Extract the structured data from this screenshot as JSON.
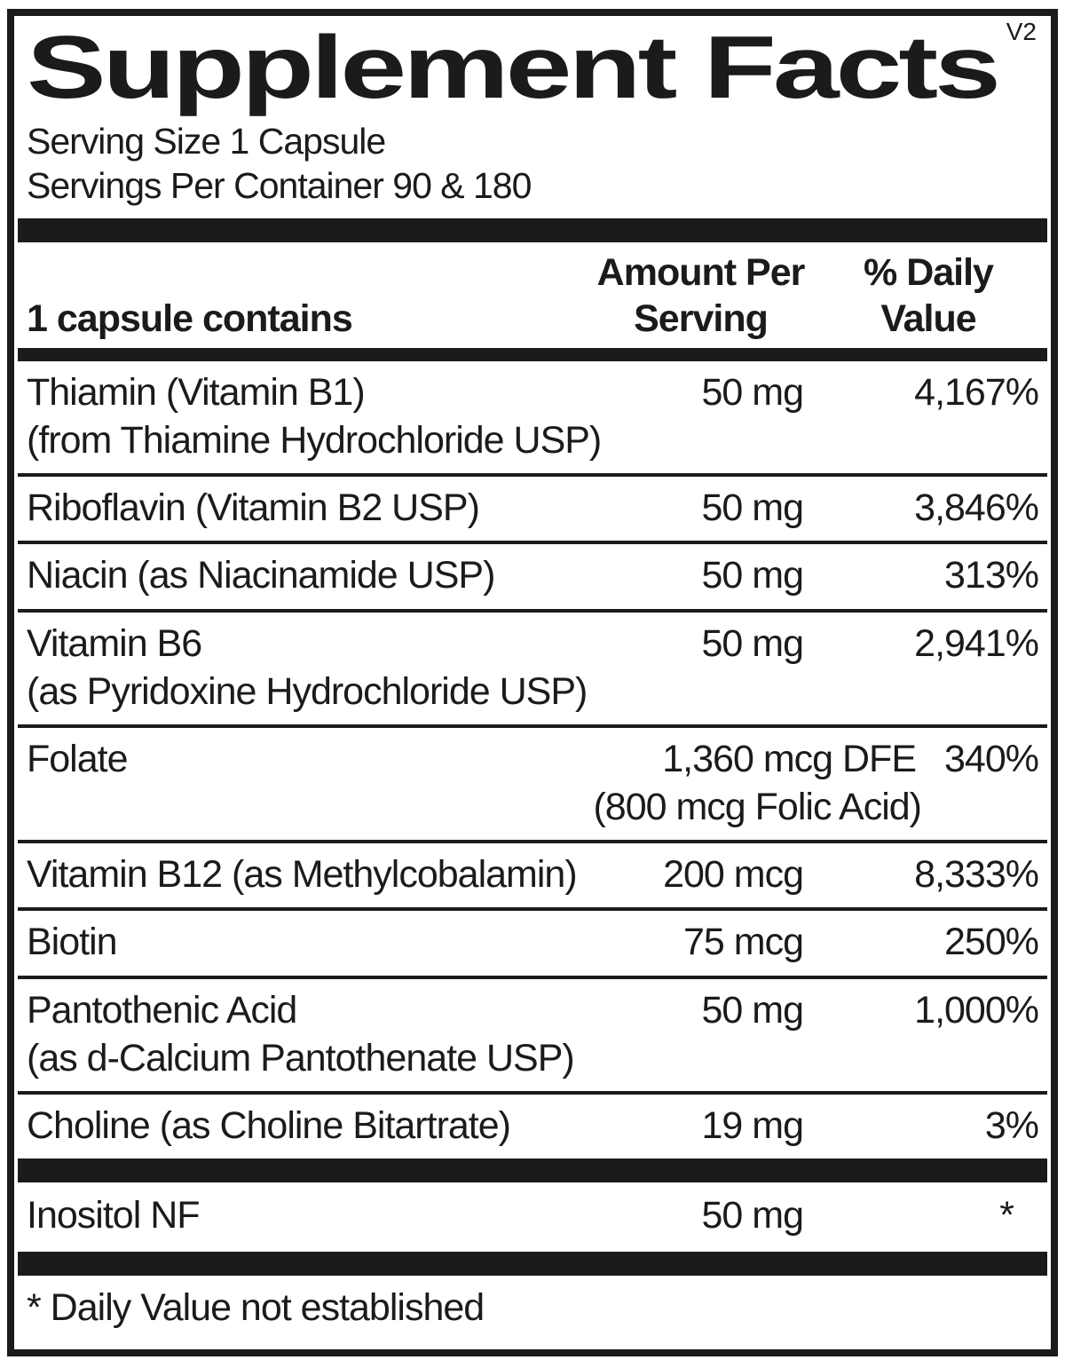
{
  "label": {
    "title": "Supplement Facts",
    "version": "V2",
    "serving_size": "Serving Size 1 Capsule",
    "servings_per_container": "Servings Per Container 90 & 180",
    "columns": {
      "contains": "1 capsule contains",
      "amount_per_serving": "Amount Per Serving",
      "percent_daily_value": "% Daily Value"
    },
    "rows": [
      {
        "name": "Thiamin (Vitamin B1)",
        "sub": "(from Thiamine Hydrochloride USP)",
        "amount": "50 mg",
        "dv": "4,167%"
      },
      {
        "name": "Riboflavin (Vitamin B2 USP)",
        "amount": "50 mg",
        "dv": "3,846%"
      },
      {
        "name": "Niacin (as Niacinamide USP)",
        "amount": "50 mg",
        "dv": "313%"
      },
      {
        "name": "Vitamin B6",
        "sub": "(as Pyridoxine Hydrochloride USP)",
        "amount": "50 mg",
        "dv": "2,941%"
      },
      {
        "name": "Folate",
        "amount": "1,360 mcg DFE",
        "amount_sub": "(800 mcg Folic Acid)",
        "dv": "340%"
      },
      {
        "name": "Vitamin B12 (as Methylcobalamin)",
        "amount": "200 mcg",
        "dv": "8,333%"
      },
      {
        "name": "Biotin",
        "amount": "75 mcg",
        "dv": "250%"
      },
      {
        "name": "Pantothenic Acid",
        "sub": "(as d-Calcium Pantothenate USP)",
        "amount": "50 mg",
        "dv": "1,000%"
      },
      {
        "name": "Choline (as Choline Bitartrate)",
        "amount": "19 mg",
        "dv": "3%"
      }
    ],
    "other_rows": [
      {
        "name": "Inositol NF",
        "amount": "50 mg",
        "dv": "*"
      }
    ],
    "footnote": "* Daily Value not established",
    "ink_color": "#1c1a1b"
  }
}
